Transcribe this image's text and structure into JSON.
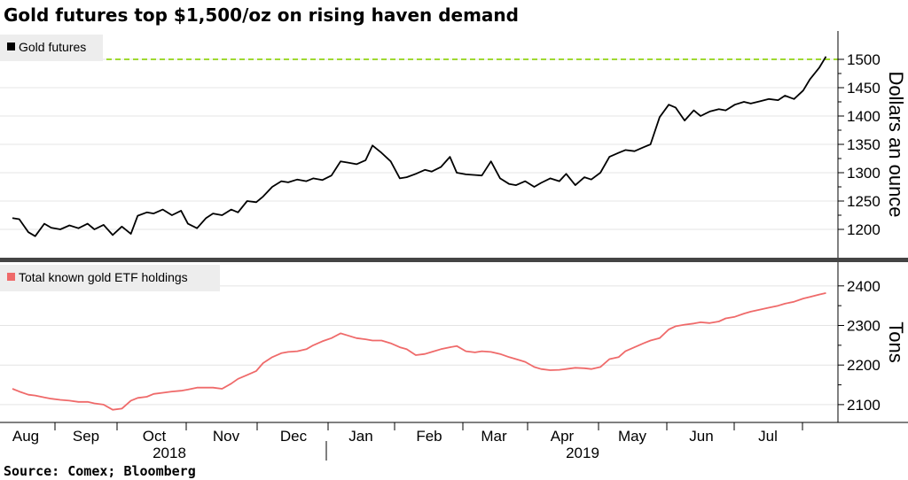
{
  "chart_data": [
    {
      "type": "line",
      "title": "Gold futures top $1,500/oz on rising haven demand",
      "legend": "Gold futures",
      "ylabel": "Dollars an ounce",
      "ylim": [
        1150,
        1550
      ],
      "yticks": [
        1200,
        1250,
        1300,
        1350,
        1400,
        1450,
        1500
      ],
      "reference_line": 1500,
      "series": [
        {
          "name": "Gold futures",
          "color": "#000000",
          "x": [
            0,
            3,
            7,
            10,
            14,
            17,
            21,
            25,
            29,
            33,
            36,
            40,
            44,
            48,
            52,
            55,
            59,
            62,
            66,
            70,
            74,
            77,
            81,
            85,
            88,
            92,
            96,
            99,
            103,
            107,
            110,
            114,
            118,
            121,
            125,
            129,
            132,
            136,
            140,
            144,
            147,
            151,
            155,
            158,
            162,
            166,
            170,
            173,
            177,
            181,
            184,
            188,
            192,
            195,
            199,
            203,
            206,
            210,
            214,
            218,
            221,
            225,
            229,
            232,
            236,
            240,
            243,
            247,
            251,
            254,
            258,
            262,
            266,
            269,
            273,
            277,
            280,
            284,
            288,
            291,
            295,
            299,
            302,
            306,
            310,
            313,
            317,
            321,
            324,
            328,
            332,
            336,
            339,
            343,
            347,
            350,
            354,
            357
          ],
          "values": [
            1220,
            1218,
            1195,
            1188,
            1210,
            1203,
            1200,
            1207,
            1202,
            1210,
            1200,
            1208,
            1190,
            1205,
            1192,
            1224,
            1230,
            1228,
            1235,
            1225,
            1233,
            1210,
            1202,
            1220,
            1228,
            1225,
            1235,
            1230,
            1250,
            1248,
            1258,
            1275,
            1285,
            1283,
            1288,
            1285,
            1290,
            1287,
            1295,
            1320,
            1318,
            1315,
            1322,
            1348,
            1335,
            1320,
            1290,
            1292,
            1298,
            1305,
            1302,
            1310,
            1328,
            1300,
            1297,
            1296,
            1295,
            1320,
            1290,
            1280,
            1278,
            1285,
            1275,
            1282,
            1290,
            1285,
            1298,
            1278,
            1292,
            1288,
            1300,
            1328,
            1335,
            1340,
            1338,
            1345,
            1350,
            1398,
            1420,
            1415,
            1392,
            1410,
            1400,
            1408,
            1412,
            1410,
            1420,
            1425,
            1422,
            1426,
            1430,
            1428,
            1436,
            1430,
            1445,
            1465,
            1485,
            1505
          ]
        }
      ]
    },
    {
      "type": "line",
      "legend": "Total known gold ETF holdings",
      "ylabel": "Tons",
      "ylim": [
        2055,
        2460
      ],
      "yticks": [
        2100,
        2200,
        2300,
        2400
      ],
      "x_tick_labels": [
        "Aug",
        "Sep",
        "Oct",
        "Nov",
        "Dec",
        "Jan",
        "Feb",
        "Mar",
        "Apr",
        "May",
        "Jun",
        "Jul"
      ],
      "year_labels": [
        "2018",
        "2019"
      ],
      "series": [
        {
          "name": "Total known gold ETF holdings",
          "color": "#ef6a6a",
          "x": [
            0,
            3,
            7,
            10,
            14,
            17,
            21,
            25,
            29,
            33,
            36,
            40,
            44,
            48,
            52,
            55,
            59,
            62,
            66,
            70,
            74,
            77,
            81,
            85,
            88,
            92,
            96,
            99,
            103,
            107,
            110,
            114,
            118,
            121,
            125,
            129,
            132,
            136,
            140,
            144,
            147,
            151,
            155,
            158,
            162,
            166,
            170,
            173,
            177,
            181,
            184,
            188,
            192,
            195,
            199,
            203,
            206,
            210,
            214,
            218,
            221,
            225,
            229,
            232,
            236,
            240,
            243,
            247,
            251,
            254,
            258,
            262,
            266,
            269,
            273,
            277,
            280,
            284,
            288,
            291,
            295,
            299,
            302,
            306,
            310,
            313,
            317,
            321,
            324,
            328,
            332,
            336,
            339,
            343,
            347,
            350,
            354,
            357
          ],
          "values": [
            2140,
            2133,
            2125,
            2123,
            2118,
            2115,
            2112,
            2110,
            2107,
            2107,
            2103,
            2100,
            2087,
            2090,
            2110,
            2117,
            2120,
            2127,
            2130,
            2133,
            2135,
            2138,
            2143,
            2143,
            2143,
            2140,
            2153,
            2165,
            2175,
            2185,
            2205,
            2220,
            2230,
            2233,
            2235,
            2240,
            2250,
            2260,
            2268,
            2280,
            2275,
            2268,
            2265,
            2262,
            2262,
            2255,
            2245,
            2240,
            2225,
            2228,
            2233,
            2240,
            2245,
            2248,
            2235,
            2232,
            2235,
            2233,
            2228,
            2220,
            2215,
            2208,
            2195,
            2190,
            2187,
            2188,
            2190,
            2193,
            2192,
            2190,
            2195,
            2215,
            2220,
            2235,
            2245,
            2255,
            2262,
            2268,
            2290,
            2298,
            2302,
            2305,
            2308,
            2306,
            2310,
            2318,
            2322,
            2330,
            2335,
            2340,
            2345,
            2350,
            2355,
            2360,
            2368,
            2372,
            2378,
            2382
          ]
        }
      ]
    }
  ],
  "source": "Source: Comex; Bloomberg",
  "colors": {
    "gold_line": "#000000",
    "etf_line": "#ef6a6a",
    "reference_line": "#9fd931",
    "legend_bg": "#ededed",
    "grid": "#e4e4e4",
    "separator": "#444444"
  }
}
